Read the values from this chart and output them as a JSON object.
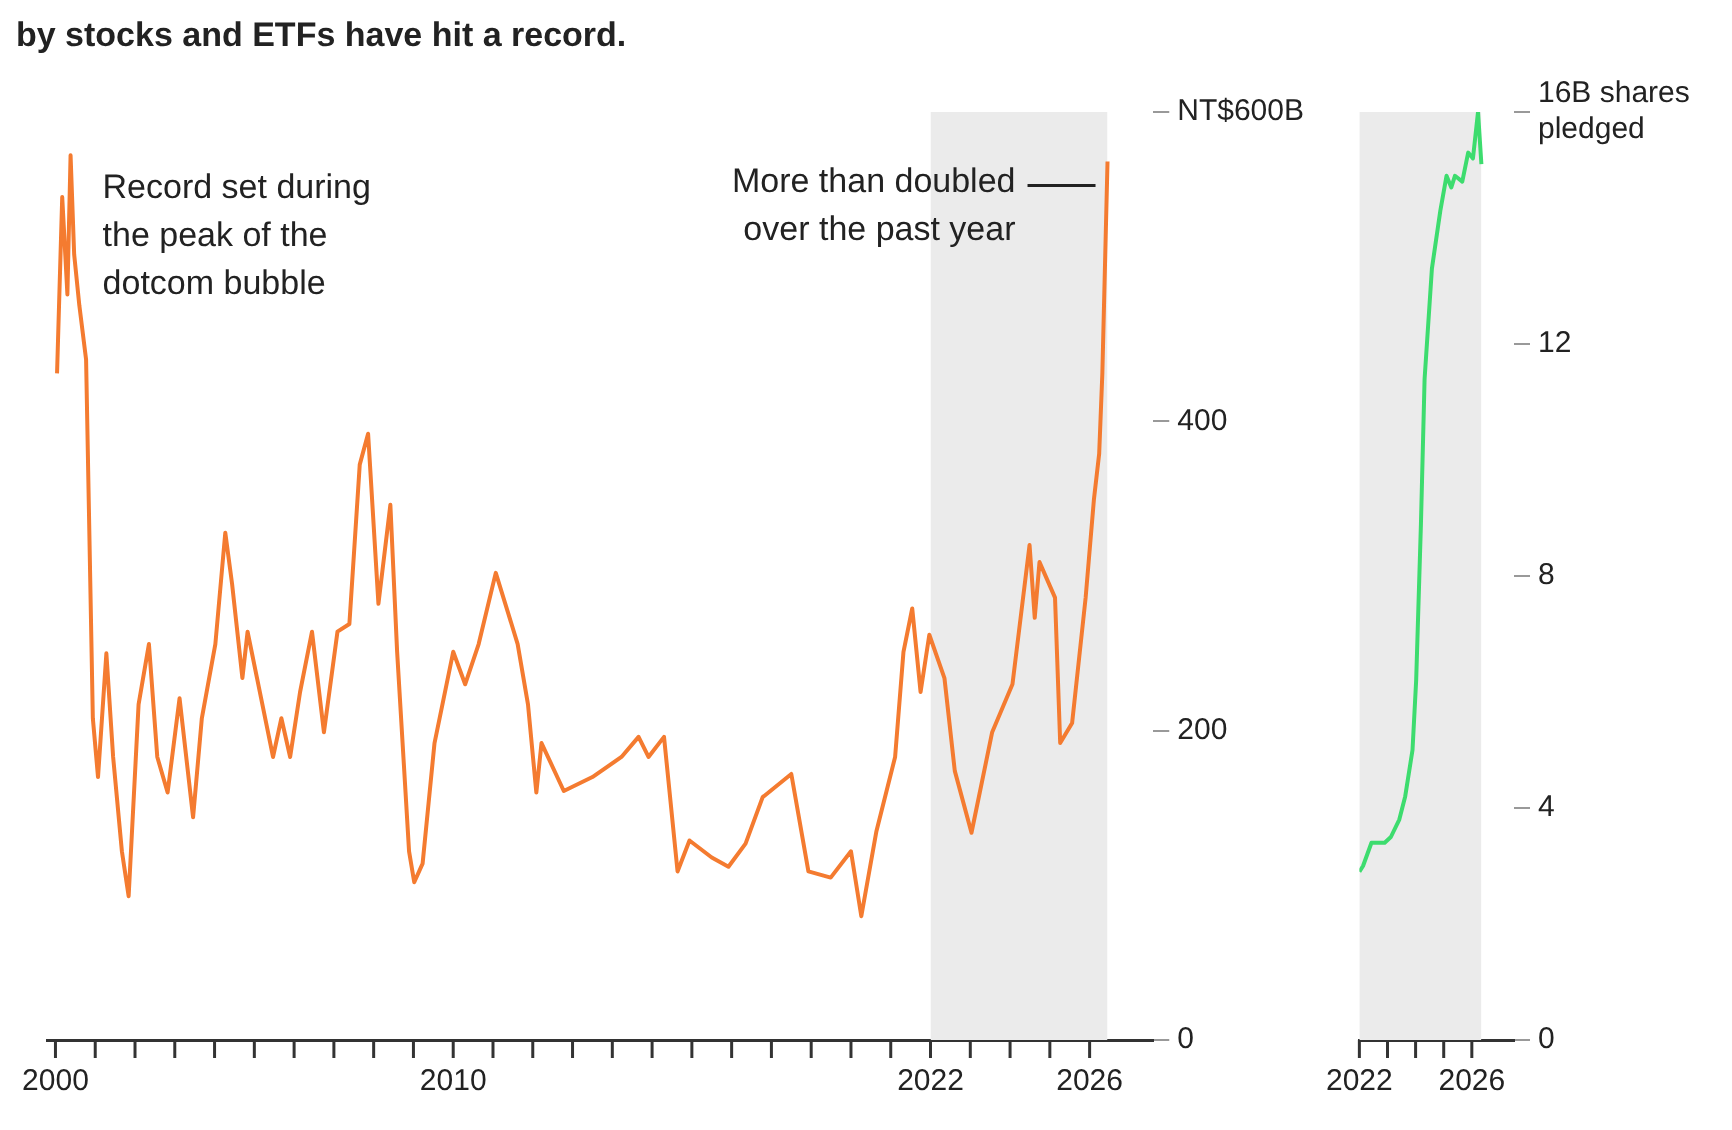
{
  "chart_data": [
    {
      "type": "line",
      "title": "by stocks and ETFs have hit a record.",
      "x": [
        2000.04,
        2000.17,
        2000.3,
        2000.38,
        2000.47,
        2000.6,
        2000.77,
        2000.94,
        2001.07,
        2001.28,
        2001.45,
        2001.67,
        2001.84,
        2002.09,
        2002.35,
        2002.56,
        2002.82,
        2003.12,
        2003.46,
        2003.68,
        2004.02,
        2004.27,
        2004.44,
        2004.7,
        2004.83,
        2005.17,
        2005.47,
        2005.68,
        2005.9,
        2006.15,
        2006.45,
        2006.75,
        2007.09,
        2007.39,
        2007.65,
        2007.86,
        2008.12,
        2008.42,
        2008.59,
        2008.89,
        2009.02,
        2009.23,
        2009.53,
        2010.0,
        2010.3,
        2010.64,
        2011.07,
        2011.37,
        2011.62,
        2011.88,
        2012.09,
        2012.22,
        2012.78,
        2013.5,
        2014.23,
        2014.66,
        2014.91,
        2015.3,
        2015.64,
        2015.94,
        2016.5,
        2016.92,
        2017.35,
        2017.78,
        2018.5,
        2018.93,
        2019.49,
        2020.0,
        2020.26,
        2020.64,
        2021.11,
        2021.32,
        2021.54,
        2021.75,
        2021.97,
        2022.35,
        2022.61,
        2023.03,
        2023.55,
        2024.06,
        2024.49,
        2024.62,
        2024.74,
        2025.13,
        2025.26,
        2025.56,
        2025.9,
        2026.11,
        2026.24,
        2026.32,
        2026.45
      ],
      "series": [
        {
          "color": "#f47b30",
          "values": [
            431,
            545,
            482,
            572,
            508,
            475,
            440,
            208,
            170,
            250,
            183,
            122,
            93,
            217,
            256,
            183,
            160,
            221,
            144,
            208,
            256,
            328,
            295,
            234,
            264,
            221,
            183,
            208,
            183,
            225,
            264,
            199,
            264,
            269,
            372,
            392,
            282,
            346,
            251,
            122,
            102,
            114,
            192,
            251,
            230,
            256,
            302,
            277,
            256,
            217,
            160,
            192,
            161,
            170,
            183,
            196,
            183,
            196,
            109,
            129,
            118,
            112,
            127,
            157,
            172,
            109,
            105,
            122,
            80,
            135,
            183,
            251,
            279,
            225,
            262,
            234,
            174,
            134,
            199,
            230,
            320,
            273,
            309,
            286,
            192,
            205,
            286,
            350,
            379,
            431,
            568
          ]
        }
      ],
      "xlim": [
        1999.8,
        2027.6
      ],
      "xticks": [
        2000,
        {
          "value": 2001,
          "label": null
        },
        {
          "value": 2002,
          "label": null
        },
        {
          "value": 2003,
          "label": null
        },
        {
          "value": 2004,
          "label": null
        },
        {
          "value": 2005,
          "label": null
        },
        {
          "value": 2006,
          "label": null
        },
        {
          "value": 2007,
          "label": null
        },
        {
          "value": 2008,
          "label": null
        },
        {
          "value": 2009,
          "label": null
        },
        2010,
        {
          "value": 2011,
          "label": null
        },
        {
          "value": 2012,
          "label": null
        },
        {
          "value": 2013,
          "label": null
        },
        {
          "value": 2014,
          "label": null
        },
        {
          "value": 2015,
          "label": null
        },
        {
          "value": 2016,
          "label": null
        },
        {
          "value": 2017,
          "label": null
        },
        {
          "value": 2018,
          "label": null
        },
        {
          "value": 2019,
          "label": null
        },
        {
          "value": 2020,
          "label": null
        },
        {
          "value": 2021,
          "label": null
        },
        2022,
        {
          "value": 2023,
          "label": null
        },
        {
          "value": 2024,
          "label": null
        },
        {
          "value": 2025,
          "label": null
        },
        2026
      ],
      "ylim": [
        0,
        600
      ],
      "yticks": [
        0,
        200,
        400,
        {
          "value": 600,
          "label": "NT$600B"
        }
      ],
      "bands": [
        {
          "axis": "x",
          "from": 2022,
          "to": 2026.45,
          "color": "#ebebeb"
        }
      ],
      "annotations": [
        {
          "text": "Record set during\nthe peak of the\ndotcom bubble",
          "x": 2000.38,
          "y": 572
        },
        {
          "text": "More than doubled\nover the past year",
          "x": 2026.45,
          "y": 568
        }
      ],
      "grid": false,
      "legend": false,
      "line_style": "solid",
      "marker": "none"
    },
    {
      "type": "line",
      "x": [
        2022.0,
        2022.13,
        2022.43,
        2022.9,
        2023.12,
        2023.42,
        2023.63,
        2023.89,
        2024.02,
        2024.19,
        2024.32,
        2024.58,
        2024.88,
        2025.1,
        2025.27,
        2025.4,
        2025.66,
        2025.87,
        2026.04,
        2026.22,
        2026.34
      ],
      "series": [
        {
          "color": "#3ddc6e",
          "values": [
            2.9,
            3.0,
            3.4,
            3.4,
            3.5,
            3.8,
            4.2,
            5.0,
            6.2,
            8.9,
            11.4,
            13.3,
            14.3,
            14.9,
            14.7,
            14.9,
            14.8,
            15.3,
            15.2,
            16.0,
            15.1
          ]
        }
      ],
      "xlim": [
        2022,
        2027.5
      ],
      "xticks": [
        2022,
        {
          "value": 2023,
          "label": null
        },
        {
          "value": 2024,
          "label": null
        },
        {
          "value": 2025,
          "label": null
        },
        2026
      ],
      "ylim": [
        0,
        16
      ],
      "yticks": [
        0,
        4,
        8,
        12,
        {
          "value": 16,
          "label": "16B shares\npledged"
        }
      ],
      "bands": [
        {
          "axis": "x",
          "from": 2022,
          "to": 2026.34,
          "color": "#ebebeb"
        }
      ],
      "grid": false,
      "legend": false,
      "line_style": "solid",
      "marker": "none"
    }
  ]
}
